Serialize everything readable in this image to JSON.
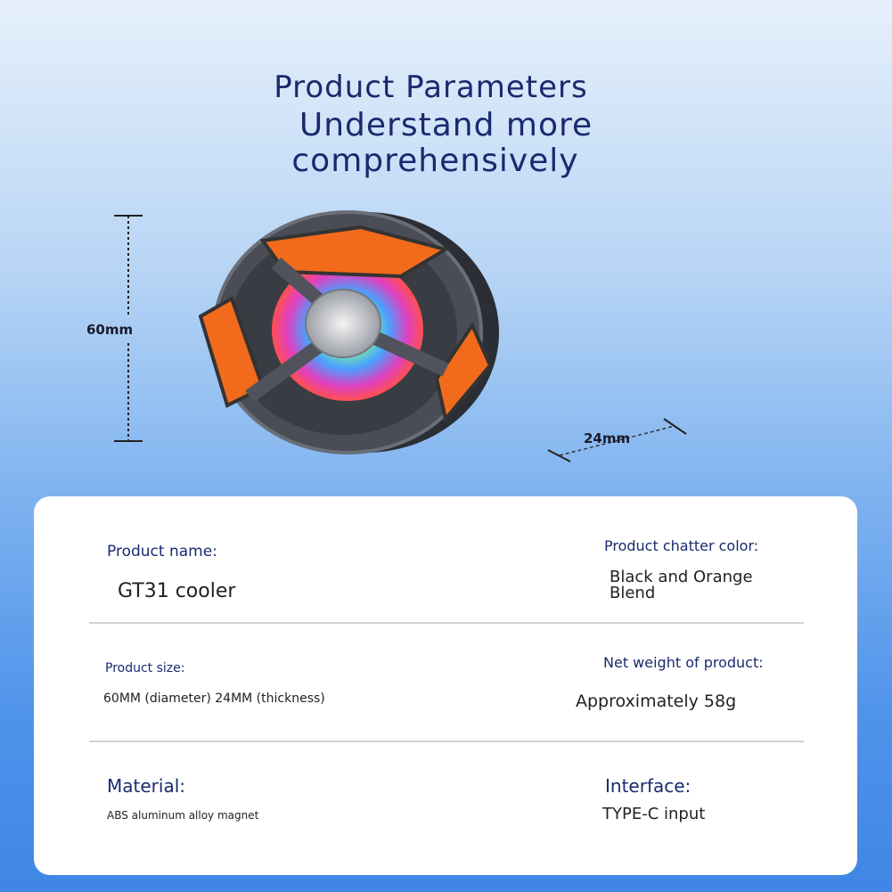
{
  "header": {
    "title": "Product Parameters",
    "subtitle_line1": "Understand more",
    "subtitle_line2": "comprehensively"
  },
  "dimensions": {
    "height_label": "60mm",
    "thickness_label": "24mm"
  },
  "product_image": {
    "icon": "magnetic-phone-cooler-fan",
    "colors": {
      "accent": "#f26a1b",
      "body": "#3c3f48"
    }
  },
  "specs": {
    "name": {
      "label": "Product name:",
      "value": "GT31 cooler"
    },
    "color": {
      "label": "Product chatter color:",
      "value": "Black and Orange Blend"
    },
    "size": {
      "label": "Product size:",
      "value": "60MM (diameter) 24MM (thickness)"
    },
    "weight": {
      "label": "Net weight of product:",
      "value": "Approximately 58g"
    },
    "material": {
      "label": "Material:",
      "value": "ABS aluminum alloy magnet"
    },
    "interface": {
      "label": "Interface:",
      "value": "TYPE-C input"
    }
  }
}
